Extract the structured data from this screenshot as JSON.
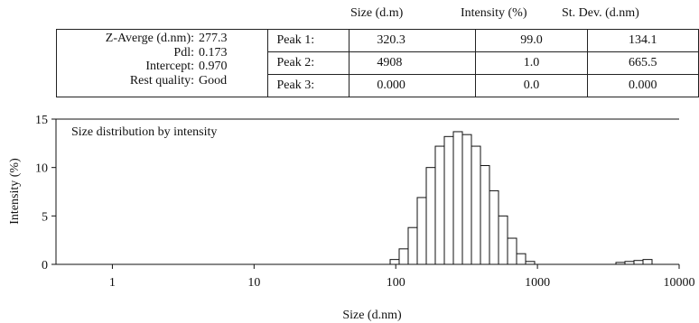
{
  "table": {
    "headers": [
      "Size (d.m)",
      "Intensity (%)",
      "St. Dev. (d.nm)"
    ],
    "summary": [
      {
        "label": "Z-Averge (d.nm):",
        "value": "277.3"
      },
      {
        "label": "Pdl:",
        "value": "0.173"
      },
      {
        "label": "Intercept:",
        "value": "0.970"
      },
      {
        "label": "Rest quality:",
        "value": "Good"
      }
    ],
    "peaks": [
      {
        "label": "Peak 1:",
        "size": "320.3",
        "intensity": "99.0",
        "stdev": "134.1"
      },
      {
        "label": "Peak 2:",
        "size": "4908",
        "intensity": "1.0",
        "stdev": "665.5"
      },
      {
        "label": "Peak 3:",
        "size": "0.000",
        "intensity": "0.0",
        "stdev": "0.000"
      }
    ]
  },
  "chart_data": {
    "type": "bar",
    "title": "Size distribution by intensity",
    "xlabel": "Size (d.nm)",
    "ylabel": "Intensity (%)",
    "xscale": "log",
    "xlim": [
      0.4,
      10000
    ],
    "ylim": [
      0,
      15
    ],
    "xticks": [
      1,
      10,
      100,
      1000,
      10000
    ],
    "xtick_labels": [
      "1",
      "10",
      "100",
      "1000",
      "10000"
    ],
    "yticks": [
      0,
      5,
      10,
      15
    ],
    "ytick_labels": [
      "0",
      "5",
      "10",
      "15"
    ],
    "grid": false,
    "bar_color": "#ffffff",
    "edge_color": "#111111",
    "bin_edges": [
      91.3,
      105.7,
      122.4,
      141.8,
      164.2,
      190.1,
      220.2,
      255.0,
      295.3,
      342.0,
      396.1,
      458.7,
      531.2,
      615.1,
      712.4,
      825.0,
      955.4,
      3580.0,
      4145.0,
      4800.0,
      5560.0,
      6439.0
    ],
    "values": [
      0.5,
      1.6,
      3.8,
      6.9,
      10.0,
      12.2,
      13.2,
      13.7,
      13.4,
      12.2,
      10.2,
      7.6,
      5.0,
      2.7,
      1.1,
      0.3,
      0.0,
      0.2,
      0.3,
      0.4,
      0.5
    ]
  }
}
